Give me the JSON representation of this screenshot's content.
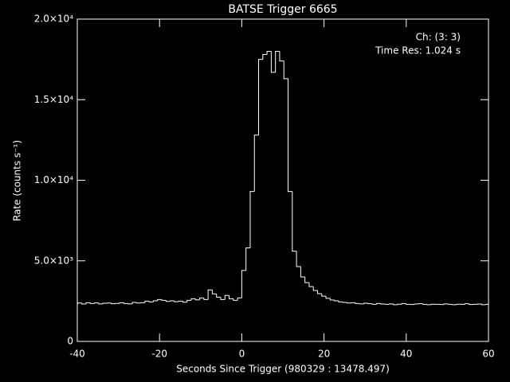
{
  "chart_data": {
    "type": "histogram",
    "title": "BATSE Trigger 6665",
    "xlabel": "Seconds Since Trigger (980329 : 13478.497)",
    "ylabel": "Rate (counts s⁻¹)",
    "annotations": [
      "Ch: (3: 3)",
      "Time Res: 1.024 s"
    ],
    "color": "#ffffff",
    "bins": [
      -40.96,
      -39.936,
      -38.912,
      -37.888,
      -36.864,
      -35.84,
      -34.816,
      -33.792,
      -32.768,
      -31.744,
      -30.72,
      -29.696,
      -28.672,
      -27.648,
      -26.624,
      -25.6,
      -24.576,
      -23.552,
      -22.528,
      -21.504,
      -20.48,
      -19.456,
      -18.432,
      -17.408,
      -16.384,
      -15.36,
      -14.336,
      -13.312,
      -12.288,
      -11.264,
      -10.24,
      -9.216,
      -8.192,
      -7.168,
      -6.144,
      -5.12,
      -4.096,
      -3.072,
      -2.048,
      -1.024,
      0,
      1.024,
      2.048,
      3.072,
      4.096,
      5.12,
      6.144,
      7.168,
      8.192,
      9.216,
      10.24,
      11.264,
      12.288,
      13.312,
      14.336,
      15.36,
      16.384,
      17.408,
      18.432,
      19.456,
      20.48,
      21.504,
      22.528,
      23.552,
      24.576,
      25.6,
      26.624,
      27.648,
      28.672,
      29.696,
      30.72,
      31.744,
      32.768,
      33.792,
      34.816,
      35.84,
      36.864,
      37.888,
      38.912,
      39.936,
      40.96,
      41.984,
      43.008,
      44.032,
      45.056,
      46.08,
      47.104,
      48.128,
      49.152,
      50.176,
      51.2,
      52.224,
      53.248,
      54.272,
      55.296,
      56.32,
      57.344,
      58.368,
      59.392,
      60.416
    ],
    "values": [
      2300,
      2380,
      2320,
      2400,
      2350,
      2390,
      2330,
      2370,
      2380,
      2340,
      2360,
      2400,
      2350,
      2330,
      2420,
      2380,
      2400,
      2500,
      2450,
      2520,
      2600,
      2550,
      2480,
      2520,
      2460,
      2500,
      2430,
      2550,
      2650,
      2580,
      2700,
      2600,
      3200,
      2950,
      2750,
      2600,
      2850,
      2650,
      2550,
      2700,
      4400,
      5800,
      9300,
      12800,
      17500,
      17800,
      18000,
      16700,
      18000,
      17400,
      16300,
      9300,
      5600,
      4640,
      4000,
      3650,
      3400,
      3160,
      2960,
      2810,
      2670,
      2570,
      2520,
      2450,
      2420,
      2380,
      2400,
      2350,
      2330,
      2370,
      2340,
      2300,
      2350,
      2320,
      2300,
      2330,
      2280,
      2310,
      2350,
      2300,
      2290,
      2320,
      2340,
      2300,
      2280,
      2310,
      2300,
      2290,
      2330,
      2300,
      2280,
      2310,
      2300,
      2340,
      2290,
      2300,
      2320,
      2280,
      2300
    ],
    "xlim": [
      -40,
      60
    ],
    "xticks": [
      -40,
      -20,
      0,
      20,
      40,
      60
    ],
    "ylim": [
      0,
      20000
    ],
    "yticks": [
      0,
      {
        "value": 5000,
        "label": "5.0×10³"
      },
      {
        "value": 10000,
        "label": "1.0×10⁴"
      },
      {
        "value": 15000,
        "label": "1.5×10⁴"
      },
      {
        "value": 20000,
        "label": "2.0×10⁴"
      }
    ]
  }
}
